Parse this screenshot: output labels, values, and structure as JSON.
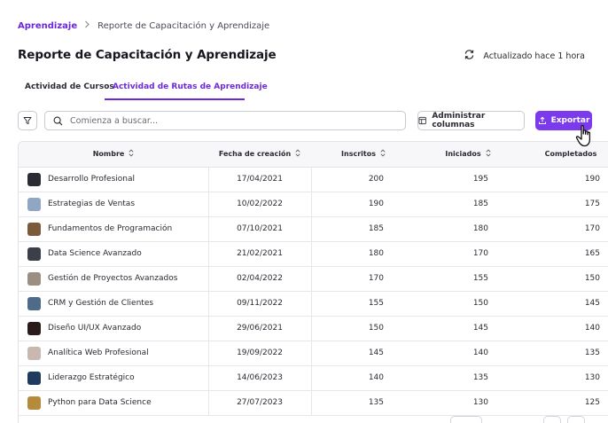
{
  "breadcrumb": {
    "parent": "Aprendizaje",
    "separator": ">",
    "current": "Reporte de Capacitación y Aprendizaje"
  },
  "page": {
    "title": "Reporte de Capacitación y Aprendizaje",
    "updated_label": "Actualizado hace 1 hora"
  },
  "tabs": [
    {
      "label": "Actividad de Cursos",
      "active": false
    },
    {
      "label": "Actividad de Rutas de Aprendizaje",
      "active": true
    }
  ],
  "toolbar": {
    "search_placeholder": "Comienza a buscar...",
    "manage_columns_label": "Administrar columnas",
    "export_label": "Exportar"
  },
  "table": {
    "columns": [
      "Nombre",
      "Fecha de creación",
      "Inscritos",
      "Iniciados",
      "Completados"
    ],
    "rows": [
      {
        "name": "Desarrollo Profesional",
        "date": "17/04/2021",
        "enrolled": "200",
        "started": "195",
        "completed": "190",
        "thumb_color": "#2b2b33"
      },
      {
        "name": "Estrategias de Ventas",
        "date": "10/02/2022",
        "enrolled": "190",
        "started": "185",
        "completed": "175",
        "thumb_color": "#8fa6c4"
      },
      {
        "name": "Fundamentos de Programación",
        "date": "07/10/2021",
        "enrolled": "185",
        "started": "180",
        "completed": "170",
        "thumb_color": "#7a5a3a"
      },
      {
        "name": "Data Science Avanzado",
        "date": "21/02/2021",
        "enrolled": "180",
        "started": "170",
        "completed": "165",
        "thumb_color": "#3a3f4a"
      },
      {
        "name": "Gestión de Proyectos Avanzados",
        "date": "02/04/2022",
        "enrolled": "170",
        "started": "155",
        "completed": "150",
        "thumb_color": "#9a8f80"
      },
      {
        "name": "CRM y Gestión de Clientes",
        "date": "09/11/2022",
        "enrolled": "155",
        "started": "150",
        "completed": "145",
        "thumb_color": "#4f6b8a"
      },
      {
        "name": "Diseño UI/UX Avanzado",
        "date": "29/06/2021",
        "enrolled": "150",
        "started": "145",
        "completed": "140",
        "thumb_color": "#2a1a1a"
      },
      {
        "name": "Analítica Web Profesional",
        "date": "19/09/2022",
        "enrolled": "145",
        "started": "140",
        "completed": "135",
        "thumb_color": "#c9b8b0"
      },
      {
        "name": "Liderazgo Estratégico",
        "date": "14/06/2023",
        "enrolled": "140",
        "started": "135",
        "completed": "130",
        "thumb_color": "#1e3a5f"
      },
      {
        "name": "Python para Data Science",
        "date": "27/07/2023",
        "enrolled": "135",
        "started": "130",
        "completed": "125",
        "thumb_color": "#b58a3a"
      }
    ]
  },
  "colors": {
    "accent": "#7c3aed",
    "accent_text": "#6d28d9",
    "border": "#c9c9d2"
  },
  "icons": [
    "chevron-right-icon",
    "refresh-icon",
    "filter-icon",
    "search-icon",
    "columns-icon",
    "upload-icon",
    "sort-icon",
    "hand-cursor-icon"
  ]
}
